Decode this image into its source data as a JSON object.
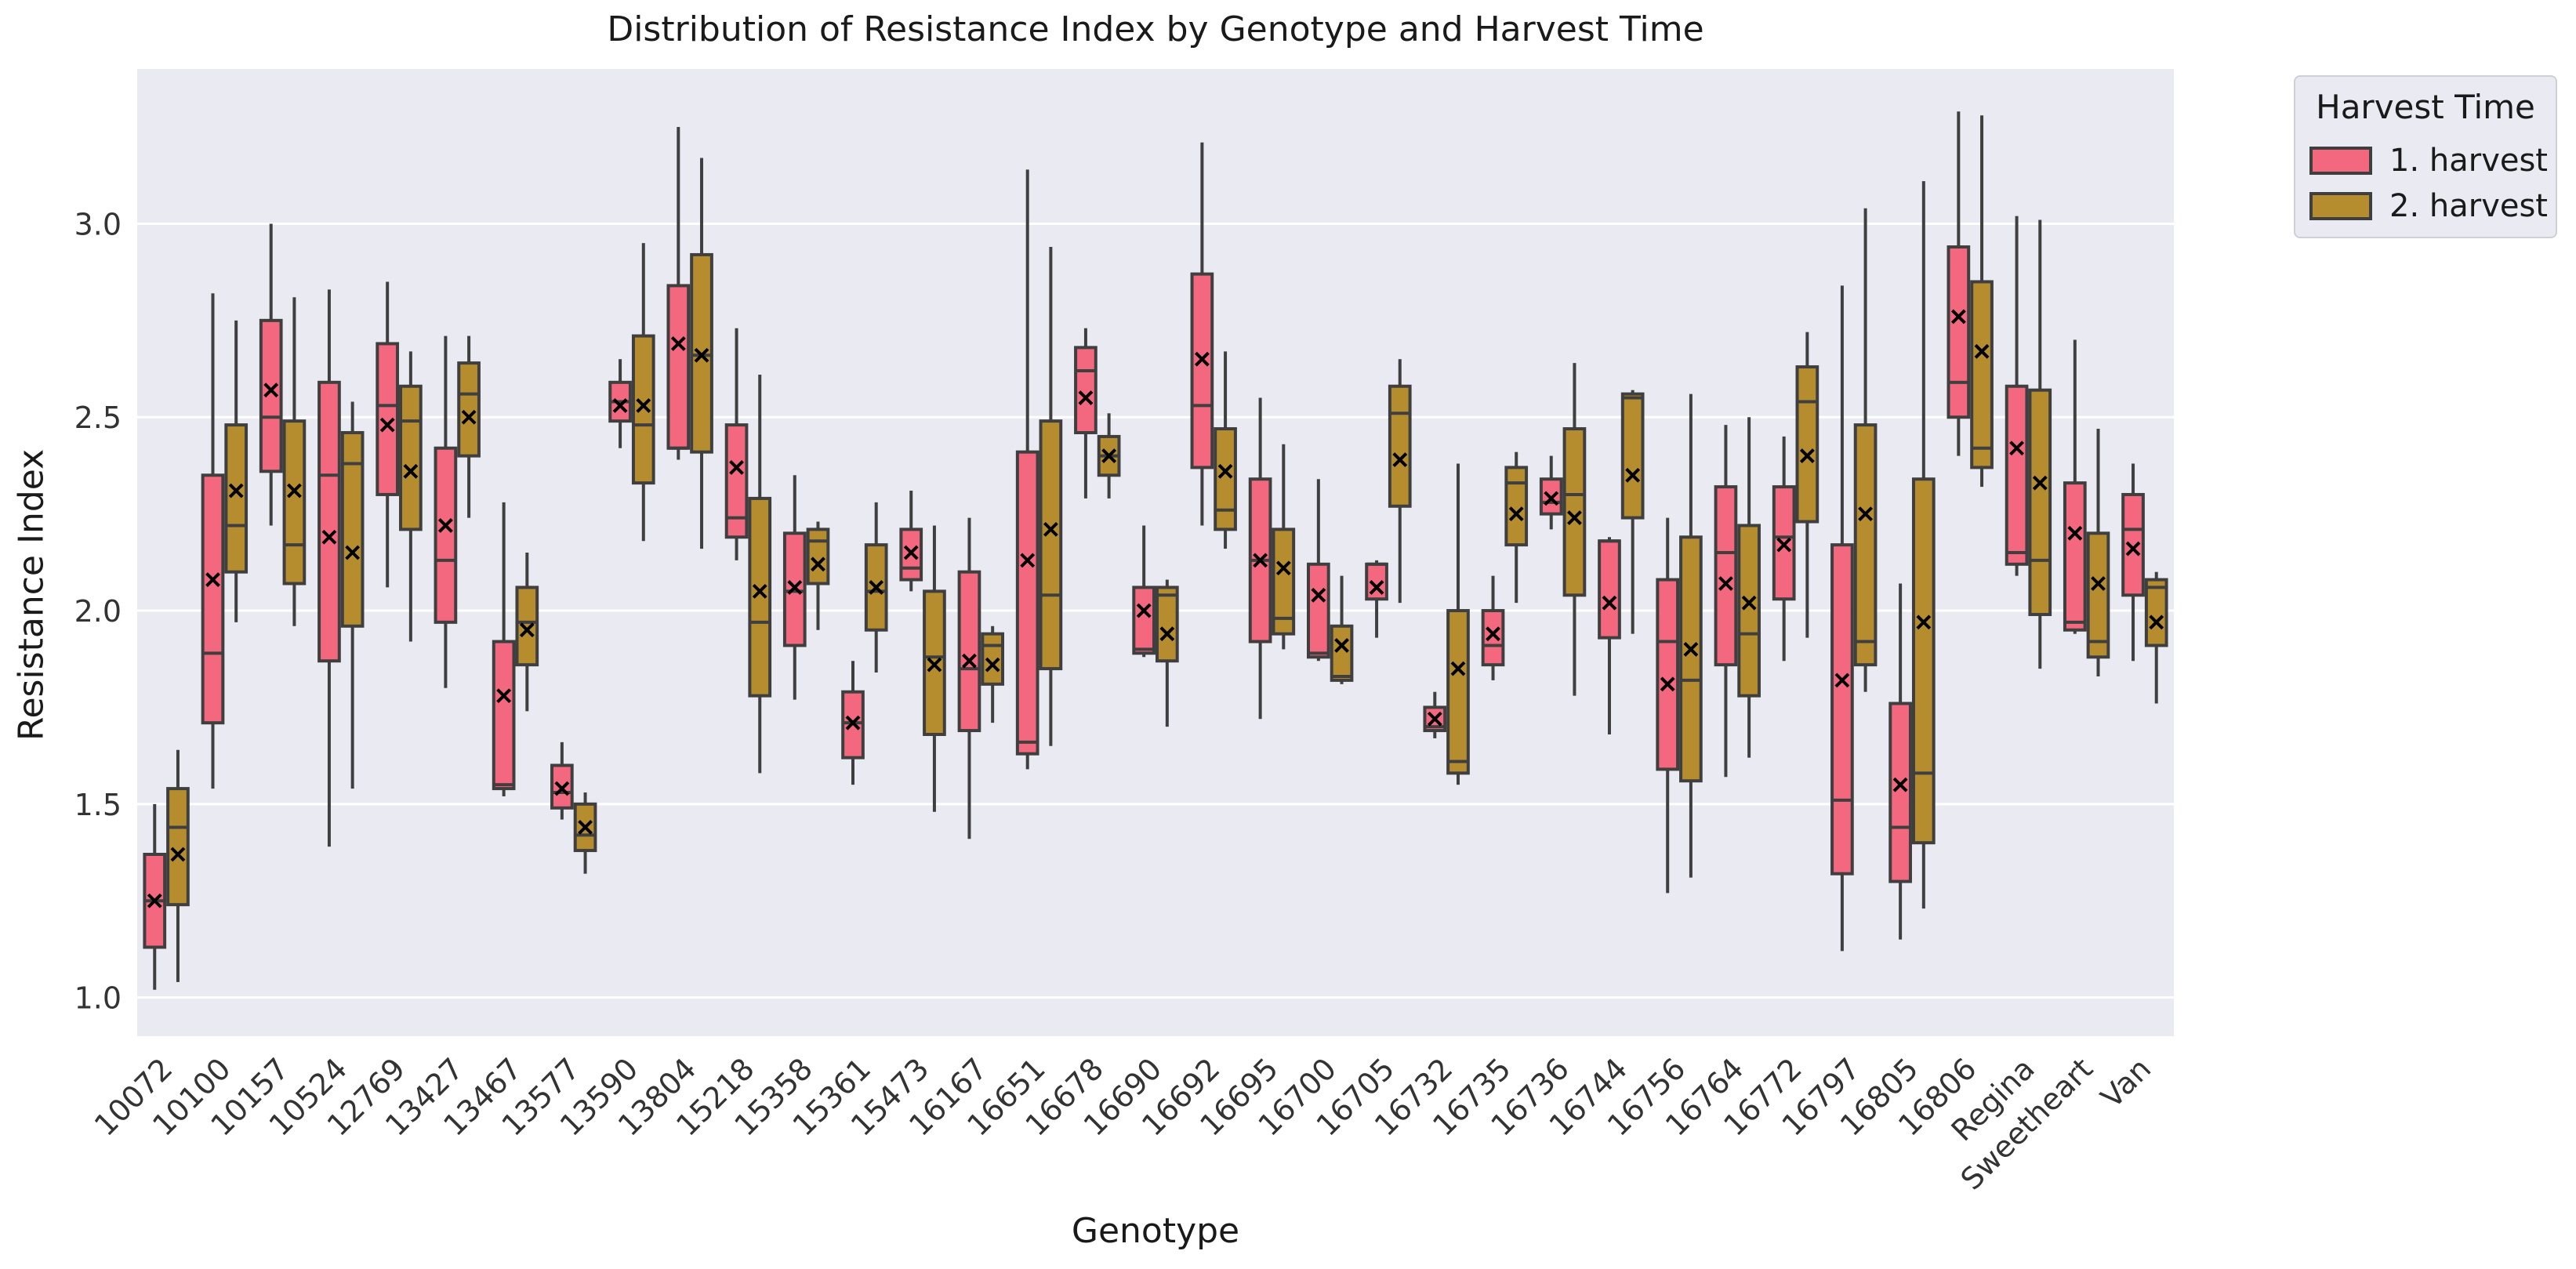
{
  "chart_data": {
    "type": "box",
    "title": "Distribution of Resistance Index by Genotype and Harvest Time",
    "xlabel": "Genotype",
    "ylabel": "Resistance Index",
    "ylim": [
      0.9,
      3.4
    ],
    "yticks": [
      "1.0",
      "1.5",
      "2.0",
      "2.5",
      "3.0"
    ],
    "legend": {
      "title": "Harvest Time",
      "placement": "outside-top-right",
      "entries": [
        {
          "name": "1. harvest",
          "color": "#f4687f"
        },
        {
          "name": "2. harvest",
          "color": "#b58d2f"
        }
      ]
    },
    "categories": [
      "10072",
      "10100",
      "10157",
      "10524",
      "12769",
      "13427",
      "13467",
      "13577",
      "13590",
      "13804",
      "15218",
      "15358",
      "15361",
      "15473",
      "16167",
      "16651",
      "16678",
      "16690",
      "16692",
      "16695",
      "16700",
      "16705",
      "16732",
      "16735",
      "16736",
      "16744",
      "16756",
      "16764",
      "16772",
      "16797",
      "16805",
      "16806",
      "Regina",
      "Sweetheart",
      "Van"
    ],
    "series": [
      {
        "name": "1. harvest",
        "color": "#f4687f",
        "boxes": [
          {
            "min": 1.02,
            "q1": 1.13,
            "median": 1.25,
            "q3": 1.37,
            "max": 1.5,
            "mean": 1.25
          },
          {
            "min": 1.54,
            "q1": 1.71,
            "median": 1.89,
            "q3": 2.35,
            "max": 2.82,
            "mean": 2.08
          },
          {
            "min": 2.22,
            "q1": 2.36,
            "median": 2.5,
            "q3": 2.75,
            "max": 3.0,
            "mean": 2.57
          },
          {
            "min": 1.39,
            "q1": 1.87,
            "median": 2.35,
            "q3": 2.59,
            "max": 2.83,
            "mean": 2.19
          },
          {
            "min": 2.06,
            "q1": 2.3,
            "median": 2.53,
            "q3": 2.69,
            "max": 2.85,
            "mean": 2.48
          },
          {
            "min": 1.8,
            "q1": 1.97,
            "median": 2.13,
            "q3": 2.42,
            "max": 2.71,
            "mean": 2.22
          },
          {
            "min": 1.52,
            "q1": 1.54,
            "median": 1.55,
            "q3": 1.92,
            "max": 2.28,
            "mean": 1.78
          },
          {
            "min": 1.46,
            "q1": 1.49,
            "median": 1.53,
            "q3": 1.6,
            "max": 1.66,
            "mean": 1.54
          },
          {
            "min": 2.42,
            "q1": 2.49,
            "median": 2.54,
            "q3": 2.59,
            "max": 2.65,
            "mean": 2.53
          },
          {
            "min": 2.39,
            "q1": 2.42,
            "median": 2.42,
            "q3": 2.84,
            "max": 3.25,
            "mean": 2.69
          },
          {
            "min": 2.13,
            "q1": 2.19,
            "median": 2.24,
            "q3": 2.48,
            "max": 2.73,
            "mean": 2.37
          },
          {
            "min": 1.77,
            "q1": 1.91,
            "median": 2.05,
            "q3": 2.2,
            "max": 2.35,
            "mean": 2.06
          },
          {
            "min": 1.55,
            "q1": 1.62,
            "median": 1.71,
            "q3": 1.79,
            "max": 1.87,
            "mean": 1.71
          },
          {
            "min": 2.05,
            "q1": 2.08,
            "median": 2.11,
            "q3": 2.21,
            "max": 2.31,
            "mean": 2.15
          },
          {
            "min": 1.41,
            "q1": 1.69,
            "median": 1.85,
            "q3": 2.1,
            "max": 2.24,
            "mean": 1.87
          },
          {
            "min": 1.59,
            "q1": 1.63,
            "median": 1.66,
            "q3": 2.41,
            "max": 3.14,
            "mean": 2.13
          },
          {
            "min": 2.29,
            "q1": 2.46,
            "median": 2.62,
            "q3": 2.68,
            "max": 2.73,
            "mean": 2.55
          },
          {
            "min": 1.88,
            "q1": 1.89,
            "median": 1.9,
            "q3": 2.06,
            "max": 2.22,
            "mean": 2.0
          },
          {
            "min": 2.22,
            "q1": 2.37,
            "median": 2.53,
            "q3": 2.87,
            "max": 3.21,
            "mean": 2.65
          },
          {
            "min": 1.72,
            "q1": 1.92,
            "median": 2.13,
            "q3": 2.34,
            "max": 2.55,
            "mean": 2.13
          },
          {
            "min": 1.87,
            "q1": 1.88,
            "median": 1.89,
            "q3": 2.12,
            "max": 2.34,
            "mean": 2.04
          },
          {
            "min": 1.93,
            "q1": 2.03,
            "median": 2.12,
            "q3": 2.12,
            "max": 2.13,
            "mean": 2.06
          },
          {
            "min": 1.67,
            "q1": 1.69,
            "median": 1.7,
            "q3": 1.75,
            "max": 1.79,
            "mean": 1.72
          },
          {
            "min": 1.82,
            "q1": 1.86,
            "median": 1.91,
            "q3": 2.0,
            "max": 2.09,
            "mean": 1.94
          },
          {
            "min": 2.21,
            "q1": 2.25,
            "median": 2.28,
            "q3": 2.34,
            "max": 2.4,
            "mean": 2.29
          },
          {
            "min": 1.68,
            "q1": 1.93,
            "median": 2.18,
            "q3": 2.18,
            "max": 2.19,
            "mean": 2.02
          },
          {
            "min": 1.27,
            "q1": 1.59,
            "median": 1.92,
            "q3": 2.08,
            "max": 2.24,
            "mean": 1.81
          },
          {
            "min": 1.57,
            "q1": 1.86,
            "median": 2.15,
            "q3": 2.32,
            "max": 2.48,
            "mean": 2.07
          },
          {
            "min": 1.87,
            "q1": 2.03,
            "median": 2.19,
            "q3": 2.32,
            "max": 2.45,
            "mean": 2.17
          },
          {
            "min": 1.12,
            "q1": 1.32,
            "median": 1.51,
            "q3": 2.17,
            "max": 2.84,
            "mean": 1.82
          },
          {
            "min": 1.15,
            "q1": 1.3,
            "median": 1.44,
            "q3": 1.76,
            "max": 2.07,
            "mean": 1.55
          },
          {
            "min": 2.4,
            "q1": 2.5,
            "median": 2.59,
            "q3": 2.94,
            "max": 3.29,
            "mean": 2.76
          },
          {
            "min": 2.09,
            "q1": 2.12,
            "median": 2.15,
            "q3": 2.58,
            "max": 3.02,
            "mean": 2.42
          },
          {
            "min": 1.94,
            "q1": 1.95,
            "median": 1.97,
            "q3": 2.33,
            "max": 2.7,
            "mean": 2.2
          },
          {
            "min": 1.87,
            "q1": 2.04,
            "median": 2.21,
            "q3": 2.3,
            "max": 2.38,
            "mean": 2.16
          }
        ]
      },
      {
        "name": "2. harvest",
        "color": "#b58d2f",
        "boxes": [
          {
            "min": 1.04,
            "q1": 1.24,
            "median": 1.44,
            "q3": 1.54,
            "max": 1.64,
            "mean": 1.37
          },
          {
            "min": 1.97,
            "q1": 2.1,
            "median": 2.22,
            "q3": 2.48,
            "max": 2.75,
            "mean": 2.31
          },
          {
            "min": 1.96,
            "q1": 2.07,
            "median": 2.17,
            "q3": 2.49,
            "max": 2.81,
            "mean": 2.31
          },
          {
            "min": 1.54,
            "q1": 1.96,
            "median": 2.38,
            "q3": 2.46,
            "max": 2.54,
            "mean": 2.15
          },
          {
            "min": 1.92,
            "q1": 2.21,
            "median": 2.49,
            "q3": 2.58,
            "max": 2.67,
            "mean": 2.36
          },
          {
            "min": 2.24,
            "q1": 2.4,
            "median": 2.56,
            "q3": 2.64,
            "max": 2.71,
            "mean": 2.5
          },
          {
            "min": 1.74,
            "q1": 1.86,
            "median": 1.97,
            "q3": 2.06,
            "max": 2.15,
            "mean": 1.95
          },
          {
            "min": 1.32,
            "q1": 1.38,
            "median": 1.42,
            "q3": 1.5,
            "max": 1.53,
            "mean": 1.44
          },
          {
            "min": 2.18,
            "q1": 2.33,
            "median": 2.48,
            "q3": 2.71,
            "max": 2.95,
            "mean": 2.53
          },
          {
            "min": 2.16,
            "q1": 2.41,
            "median": 2.66,
            "q3": 2.92,
            "max": 3.17,
            "mean": 2.66
          },
          {
            "min": 1.58,
            "q1": 1.78,
            "median": 1.97,
            "q3": 2.29,
            "max": 2.61,
            "mean": 2.05
          },
          {
            "min": 1.95,
            "q1": 2.07,
            "median": 2.18,
            "q3": 2.21,
            "max": 2.23,
            "mean": 2.12
          },
          {
            "min": 1.84,
            "q1": 1.95,
            "median": 2.05,
            "q3": 2.17,
            "max": 2.28,
            "mean": 2.06
          },
          {
            "min": 1.48,
            "q1": 1.68,
            "median": 1.88,
            "q3": 2.05,
            "max": 2.22,
            "mean": 1.86
          },
          {
            "min": 1.71,
            "q1": 1.81,
            "median": 1.91,
            "q3": 1.94,
            "max": 1.96,
            "mean": 1.86
          },
          {
            "min": 1.65,
            "q1": 1.85,
            "median": 2.04,
            "q3": 2.49,
            "max": 2.94,
            "mean": 2.21
          },
          {
            "min": 2.29,
            "q1": 2.35,
            "median": 2.4,
            "q3": 2.45,
            "max": 2.51,
            "mean": 2.4
          },
          {
            "min": 1.7,
            "q1": 1.87,
            "median": 2.04,
            "q3": 2.06,
            "max": 2.08,
            "mean": 1.94
          },
          {
            "min": 2.16,
            "q1": 2.21,
            "median": 2.26,
            "q3": 2.47,
            "max": 2.67,
            "mean": 2.36
          },
          {
            "min": 1.9,
            "q1": 1.94,
            "median": 1.98,
            "q3": 2.21,
            "max": 2.43,
            "mean": 2.11
          },
          {
            "min": 1.81,
            "q1": 1.82,
            "median": 1.83,
            "q3": 1.96,
            "max": 2.09,
            "mean": 1.91
          },
          {
            "min": 2.02,
            "q1": 2.27,
            "median": 2.51,
            "q3": 2.58,
            "max": 2.65,
            "mean": 2.39
          },
          {
            "min": 1.55,
            "q1": 1.58,
            "median": 1.61,
            "q3": 2.0,
            "max": 2.38,
            "mean": 1.85
          },
          {
            "min": 2.02,
            "q1": 2.17,
            "median": 2.33,
            "q3": 2.37,
            "max": 2.41,
            "mean": 2.25
          },
          {
            "min": 1.78,
            "q1": 2.04,
            "median": 2.3,
            "q3": 2.47,
            "max": 2.64,
            "mean": 2.24
          },
          {
            "min": 1.94,
            "q1": 2.24,
            "median": 2.55,
            "q3": 2.56,
            "max": 2.57,
            "mean": 2.35
          },
          {
            "min": 1.31,
            "q1": 1.56,
            "median": 1.82,
            "q3": 2.19,
            "max": 2.56,
            "mean": 1.9
          },
          {
            "min": 1.62,
            "q1": 1.78,
            "median": 1.94,
            "q3": 2.22,
            "max": 2.5,
            "mean": 2.02
          },
          {
            "min": 1.93,
            "q1": 2.23,
            "median": 2.54,
            "q3": 2.63,
            "max": 2.72,
            "mean": 2.4
          },
          {
            "min": 1.79,
            "q1": 1.86,
            "median": 1.92,
            "q3": 2.48,
            "max": 3.04,
            "mean": 2.25
          },
          {
            "min": 1.23,
            "q1": 1.4,
            "median": 1.58,
            "q3": 2.34,
            "max": 3.11,
            "mean": 1.97
          },
          {
            "min": 2.32,
            "q1": 2.37,
            "median": 2.42,
            "q3": 2.85,
            "max": 3.28,
            "mean": 2.67
          },
          {
            "min": 1.85,
            "q1": 1.99,
            "median": 2.13,
            "q3": 2.57,
            "max": 3.01,
            "mean": 2.33
          },
          {
            "min": 1.83,
            "q1": 1.88,
            "median": 1.92,
            "q3": 2.2,
            "max": 2.47,
            "mean": 2.07
          },
          {
            "min": 1.76,
            "q1": 1.91,
            "median": 2.06,
            "q3": 2.08,
            "max": 2.1,
            "mean": 1.97
          }
        ]
      }
    ]
  }
}
